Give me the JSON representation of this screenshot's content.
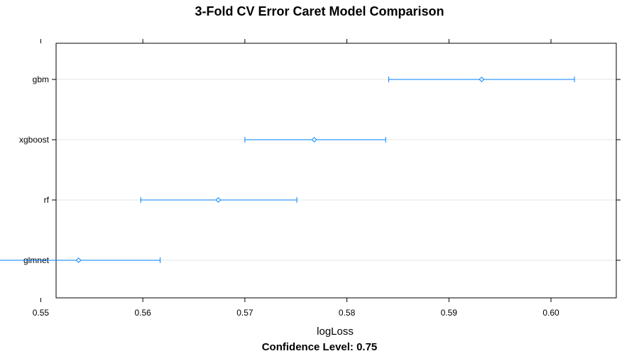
{
  "chart_data": {
    "type": "dotplot",
    "title": "3-Fold CV Error Caret Model Comparison",
    "xlabel": "logLoss",
    "subtitle": "Confidence Level: 0.75",
    "xlim": [
      0.5515,
      0.6064
    ],
    "xticks": [
      "0.55",
      "0.56",
      "0.57",
      "0.58",
      "0.59",
      "0.60"
    ],
    "xtick_values": [
      0.55,
      0.56,
      0.57,
      0.58,
      0.59,
      0.6
    ],
    "categories": [
      "gbm",
      "xgboost",
      "rf",
      "glmnet"
    ],
    "estimates": [
      0.5932,
      0.5768,
      0.5674,
      0.5537
    ],
    "lower": [
      0.5841,
      0.57,
      0.5598,
      0.5455
    ],
    "upper": [
      0.6023,
      0.5838,
      0.5751,
      0.5617
    ],
    "grid": true,
    "color": "#0080ff"
  }
}
